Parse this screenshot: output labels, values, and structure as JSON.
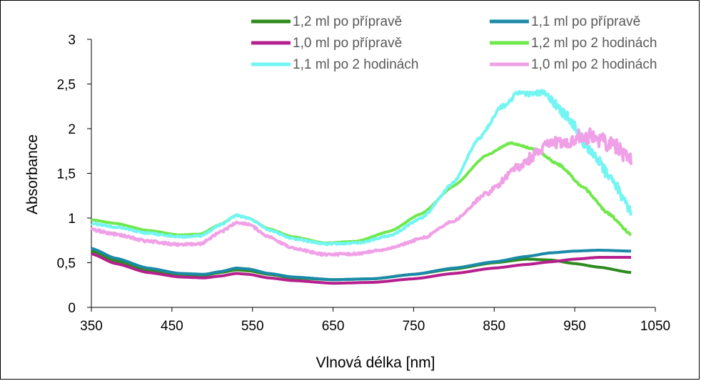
{
  "chart_data": {
    "type": "line",
    "title": "",
    "xlabel": "Vlnová délka [nm]",
    "ylabel": "Absorbance",
    "xlim": [
      350,
      1050
    ],
    "ylim": [
      0,
      3
    ],
    "xticks": [
      350,
      450,
      550,
      650,
      750,
      850,
      950,
      1050
    ],
    "yticks": [
      0,
      0.5,
      1,
      1.5,
      2,
      2.5,
      3
    ],
    "xtick_labels": [
      "350",
      "450",
      "550",
      "650",
      "750",
      "850",
      "950",
      "1050"
    ],
    "ytick_labels": [
      "0",
      "0,5",
      "1",
      "1,5",
      "2",
      "2,5",
      "3"
    ],
    "grid": false,
    "legend_position": "top-right",
    "series": [
      {
        "name": "1,2 ml po přípravě",
        "color": "#2e8b1e",
        "noise": 0,
        "points": [
          [
            350,
            0.63
          ],
          [
            380,
            0.52
          ],
          [
            420,
            0.42
          ],
          [
            460,
            0.37
          ],
          [
            490,
            0.36
          ],
          [
            510,
            0.39
          ],
          [
            530,
            0.42
          ],
          [
            545,
            0.41
          ],
          [
            570,
            0.37
          ],
          [
            600,
            0.33
          ],
          [
            650,
            0.31
          ],
          [
            700,
            0.32
          ],
          [
            750,
            0.37
          ],
          [
            800,
            0.43
          ],
          [
            850,
            0.5
          ],
          [
            890,
            0.54
          ],
          [
            920,
            0.53
          ],
          [
            950,
            0.49
          ],
          [
            980,
            0.45
          ],
          [
            1020,
            0.39
          ]
        ]
      },
      {
        "name": "1,1 ml po přípravě",
        "color": "#1a8aa8",
        "noise": 0,
        "points": [
          [
            350,
            0.66
          ],
          [
            380,
            0.55
          ],
          [
            420,
            0.44
          ],
          [
            460,
            0.38
          ],
          [
            490,
            0.37
          ],
          [
            510,
            0.4
          ],
          [
            530,
            0.44
          ],
          [
            545,
            0.43
          ],
          [
            570,
            0.38
          ],
          [
            600,
            0.34
          ],
          [
            650,
            0.31
          ],
          [
            700,
            0.32
          ],
          [
            750,
            0.37
          ],
          [
            800,
            0.44
          ],
          [
            850,
            0.51
          ],
          [
            890,
            0.57
          ],
          [
            920,
            0.61
          ],
          [
            950,
            0.63
          ],
          [
            980,
            0.64
          ],
          [
            1020,
            0.63
          ]
        ]
      },
      {
        "name": "1,0 ml po přípravě",
        "color": "#b5208e",
        "noise": 0,
        "points": [
          [
            350,
            0.6
          ],
          [
            380,
            0.49
          ],
          [
            420,
            0.39
          ],
          [
            460,
            0.34
          ],
          [
            490,
            0.33
          ],
          [
            510,
            0.35
          ],
          [
            530,
            0.38
          ],
          [
            545,
            0.37
          ],
          [
            570,
            0.33
          ],
          [
            600,
            0.3
          ],
          [
            650,
            0.27
          ],
          [
            700,
            0.28
          ],
          [
            750,
            0.32
          ],
          [
            800,
            0.38
          ],
          [
            850,
            0.44
          ],
          [
            890,
            0.48
          ],
          [
            920,
            0.51
          ],
          [
            950,
            0.54
          ],
          [
            980,
            0.56
          ],
          [
            1020,
            0.56
          ]
        ]
      },
      {
        "name": "1,2 ml po 2 hodinách",
        "color": "#6fe84a",
        "noise": 0.012,
        "points": [
          [
            350,
            0.98
          ],
          [
            380,
            0.94
          ],
          [
            420,
            0.86
          ],
          [
            460,
            0.81
          ],
          [
            485,
            0.82
          ],
          [
            510,
            0.93
          ],
          [
            530,
            1.03
          ],
          [
            545,
            1.0
          ],
          [
            570,
            0.88
          ],
          [
            600,
            0.79
          ],
          [
            640,
            0.72
          ],
          [
            680,
            0.74
          ],
          [
            720,
            0.85
          ],
          [
            760,
            1.05
          ],
          [
            800,
            1.36
          ],
          [
            840,
            1.7
          ],
          [
            870,
            1.84
          ],
          [
            900,
            1.77
          ],
          [
            930,
            1.6
          ],
          [
            960,
            1.35
          ],
          [
            990,
            1.06
          ],
          [
            1020,
            0.82
          ]
        ]
      },
      {
        "name": "1,1 ml po 2 hodinách",
        "color": "#73f5f2",
        "noise": 0.06,
        "points": [
          [
            350,
            0.94
          ],
          [
            380,
            0.9
          ],
          [
            420,
            0.83
          ],
          [
            460,
            0.79
          ],
          [
            485,
            0.8
          ],
          [
            510,
            0.92
          ],
          [
            530,
            1.03
          ],
          [
            545,
            1.0
          ],
          [
            570,
            0.87
          ],
          [
            600,
            0.77
          ],
          [
            640,
            0.71
          ],
          [
            680,
            0.72
          ],
          [
            720,
            0.8
          ],
          [
            760,
            1.0
          ],
          [
            800,
            1.4
          ],
          [
            830,
            1.88
          ],
          [
            860,
            2.25
          ],
          [
            880,
            2.4
          ],
          [
            910,
            2.4
          ],
          [
            940,
            2.15
          ],
          [
            970,
            1.75
          ],
          [
            1000,
            1.38
          ],
          [
            1020,
            1.05
          ]
        ]
      },
      {
        "name": "1,0 ml po 2 hodinách",
        "color": "#f0a0e6",
        "noise": 0.09,
        "points": [
          [
            350,
            0.87
          ],
          [
            380,
            0.82
          ],
          [
            420,
            0.74
          ],
          [
            460,
            0.7
          ],
          [
            485,
            0.71
          ],
          [
            510,
            0.84
          ],
          [
            530,
            0.95
          ],
          [
            545,
            0.93
          ],
          [
            570,
            0.79
          ],
          [
            600,
            0.66
          ],
          [
            640,
            0.59
          ],
          [
            680,
            0.6
          ],
          [
            720,
            0.66
          ],
          [
            760,
            0.77
          ],
          [
            800,
            0.97
          ],
          [
            840,
            1.27
          ],
          [
            880,
            1.57
          ],
          [
            910,
            1.78
          ],
          [
            940,
            1.88
          ],
          [
            970,
            1.92
          ],
          [
            1000,
            1.8
          ],
          [
            1020,
            1.66
          ]
        ]
      }
    ]
  }
}
